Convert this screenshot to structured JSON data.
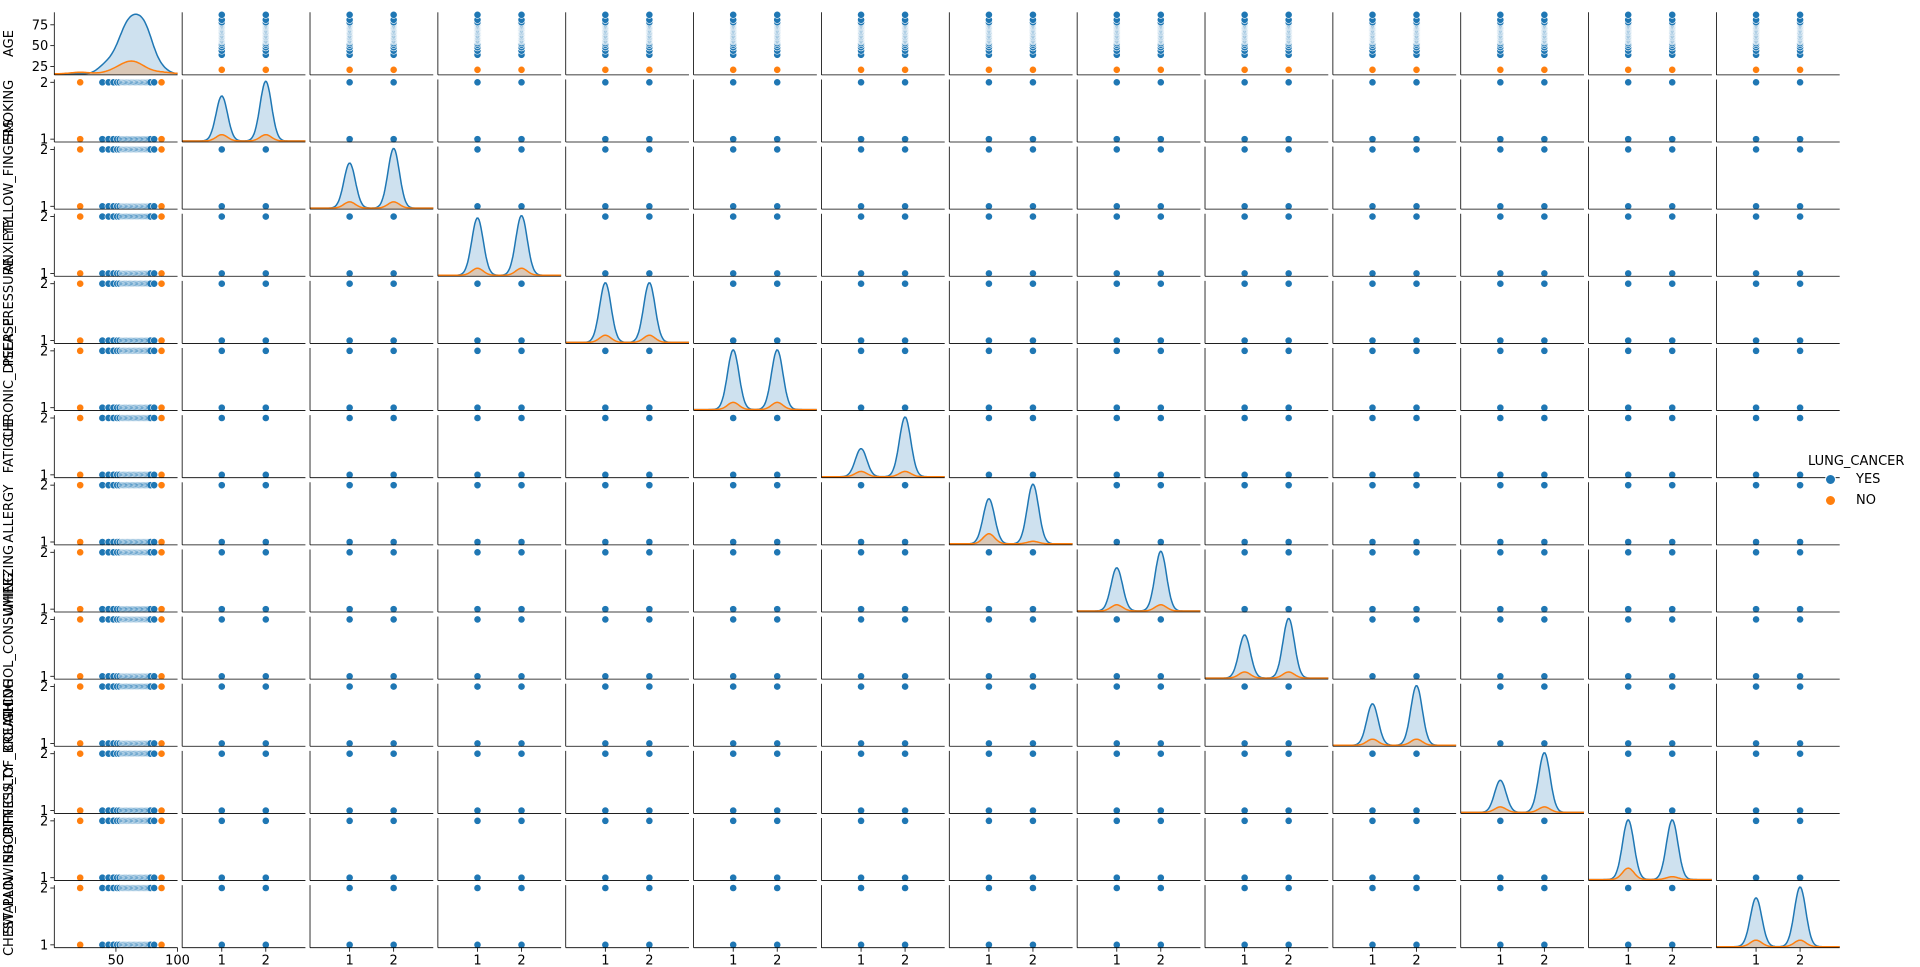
{
  "chart_data": {
    "type": "scatter",
    "variables": [
      "AGE",
      "SMOKING",
      "YELLOW_FINGERS",
      "ANXIETY",
      "PEER_PRESSURE",
      "CHRONIC_DISEASE",
      "FATIGUE",
      "ALLERGY",
      "WHEEZING",
      "ALCOHOL_CONSUMING",
      "COUGHING",
      "SHORTNESS_OF_BREATH",
      "SWALLOWING_DIFFICULTY",
      "CHEST_PAIN"
    ],
    "x_variables": [
      "AGE",
      "SMOKING",
      "YELLOW_FINGERS",
      "ANXIETY",
      "PEER_PRESSURE",
      "CHRONIC_DISEASE",
      "FATIGUE",
      "ALLERGY",
      "WHEEZING",
      "ALCOHOL_CONSUMING",
      "COUGHING",
      "SHORTNESS_OF_BREATH",
      "SWALLOWING_DIFFICULTY",
      "CHEST_PAIN"
    ],
    "hue": "LUNG_CANCER",
    "colors": {
      "YES": "#1f77b4",
      "NO": "#ff7f0e"
    },
    "age_ticks": [
      25,
      50,
      75
    ],
    "age_xticks": [
      50,
      100
    ],
    "binary_ticks": [
      1,
      2
    ],
    "age_ylim": [
      15,
      90
    ],
    "binary_ylim": [
      0.95,
      2.05
    ],
    "age_xlim": [
      0,
      100
    ],
    "binary_xlim": [
      0.1,
      2.9
    ],
    "age_distribution": {
      "YES": [
        39,
        44,
        48,
        51,
        53,
        55,
        56,
        57,
        58,
        59,
        60,
        61,
        62,
        63,
        64,
        65,
        66,
        67,
        68,
        69,
        70,
        71,
        72,
        73,
        74,
        75,
        76,
        77,
        78,
        81,
        87
      ],
      "NO": [
        21,
        47,
        53,
        56,
        60,
        61,
        62,
        63,
        64,
        68,
        69,
        72,
        87
      ]
    },
    "yes_fraction_value2": [
      0.57,
      0.57,
      0.51,
      0.5,
      0.5,
      0.68,
      0.57,
      0.58,
      0.58,
      0.59,
      0.65,
      0.5,
      0.55
    ],
    "no_fraction_value2": [
      0.5,
      0.5,
      0.5,
      0.5,
      0.5,
      0.5,
      0.2,
      0.5,
      0.5,
      0.5,
      0.5,
      0.2,
      0.5
    ],
    "legend": {
      "title": "LUNG_CANCER",
      "entries": [
        "YES",
        "NO"
      ],
      "placement": "right"
    }
  }
}
